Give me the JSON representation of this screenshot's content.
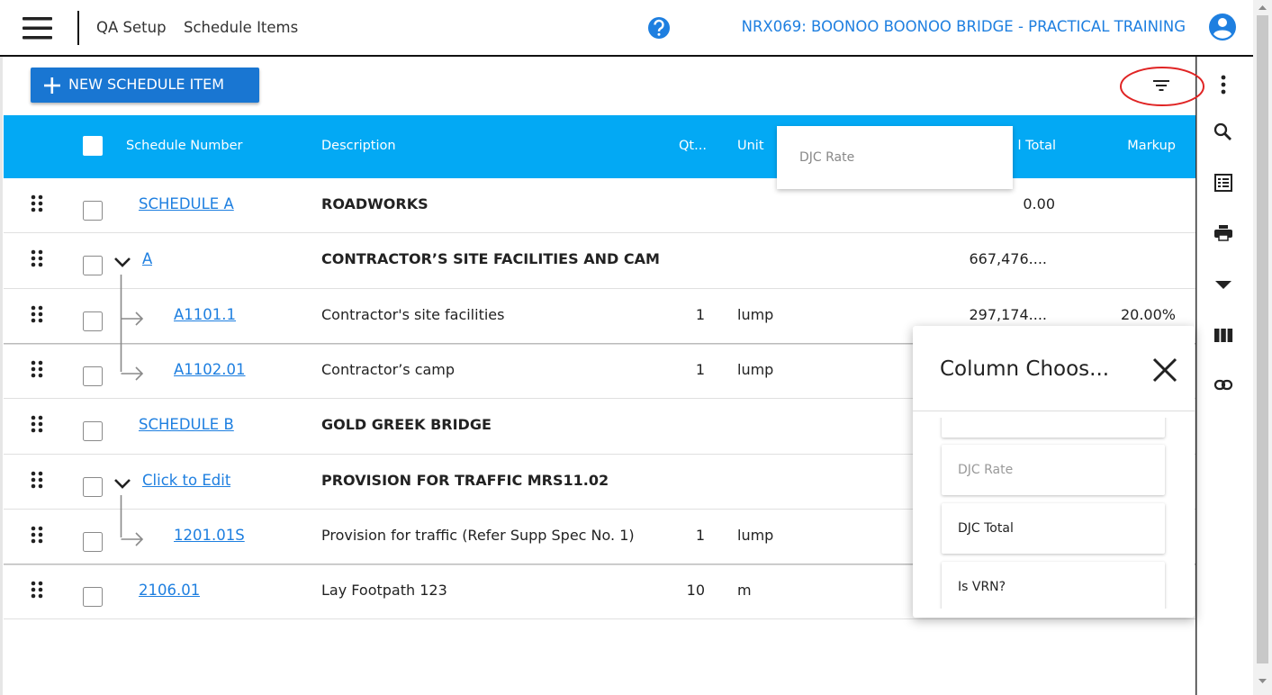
{
  "header": {
    "breadcrumb": [
      "QA Setup",
      "Schedule Items"
    ],
    "project": "NRX069: BOONOO BOONOO BRIDGE - PRACTICAL TRAINING"
  },
  "toolbar": {
    "new_button": "NEW SCHEDULE ITEM"
  },
  "table": {
    "columns": [
      "Schedule Number",
      "Description",
      "Qt...",
      "Unit",
      "l Total",
      "Markup"
    ],
    "rows": [
      {
        "number": "SCHEDULE A",
        "description": "ROADWORKS",
        "total": "0.00"
      },
      {
        "number": "A",
        "description": "CONTRACTOR’S SITE FACILITIES AND CAM",
        "total": "667,476...."
      },
      {
        "number": "A1101.1",
        "description": "Contractor's site facilities",
        "qty": 1,
        "unit": "lump",
        "total": "297,174....",
        "markup": "20.00%"
      },
      {
        "number": "A1102.01",
        "description": "Contractor’s camp",
        "qty": 1,
        "unit": "lump"
      },
      {
        "number": "SCHEDULE B",
        "description": "GOLD GREEK BRIDGE"
      },
      {
        "number": "Click to Edit",
        "description": "PROVISION FOR TRAFFIC MRS11.02"
      },
      {
        "number": "1201.01S",
        "description": "Provision for traffic (Refer Supp Spec No. 1)",
        "qty": 1,
        "unit": "lump"
      },
      {
        "number": "2106.01",
        "description": "Lay Footpath 123",
        "qty": 10,
        "unit": "m"
      }
    ]
  },
  "column_dropdown": {
    "item": "DJC Rate"
  },
  "column_chooser": {
    "title": "Column Choos...",
    "items": [
      "DJC Rate",
      "DJC Total",
      "Is VRN?"
    ]
  }
}
